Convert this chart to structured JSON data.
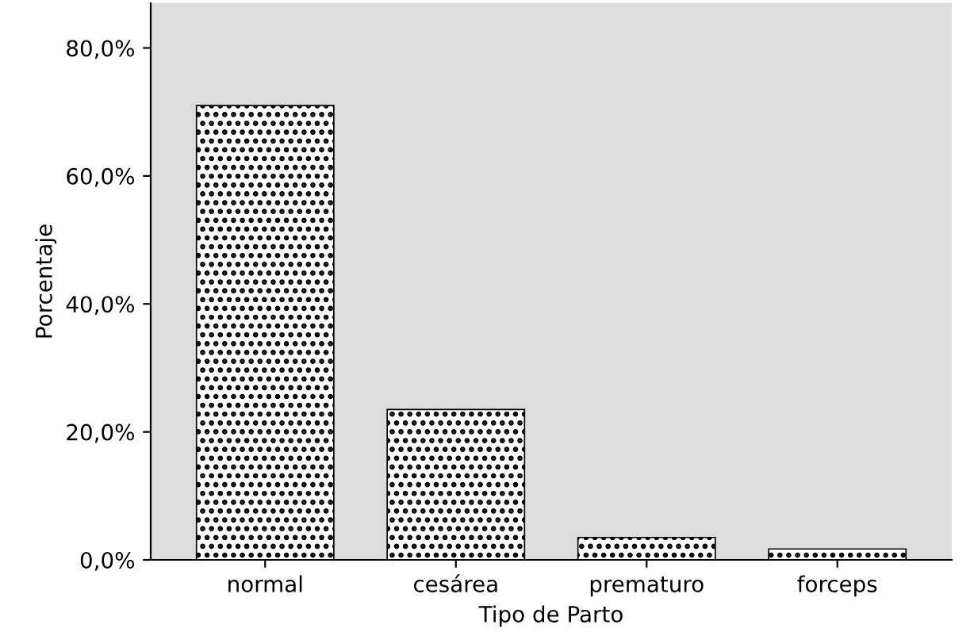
{
  "chart_data": {
    "type": "bar",
    "xlabel": "Tipo de Parto",
    "ylabel": "Porcentaje",
    "categories": [
      "normal",
      "cesárea",
      "prematuro",
      "forceps"
    ],
    "values": [
      71.0,
      23.5,
      3.5,
      1.7
    ],
    "color": "#000000",
    "ylim": [
      0,
      87
    ],
    "yticks": [
      {
        "value": 0,
        "label": "0,0%"
      },
      {
        "value": 20,
        "label": "20,0%"
      },
      {
        "value": 40,
        "label": "40,0%"
      },
      {
        "value": 60,
        "label": "60,0%"
      },
      {
        "value": 80,
        "label": "80,0%"
      }
    ],
    "grid": false
  }
}
